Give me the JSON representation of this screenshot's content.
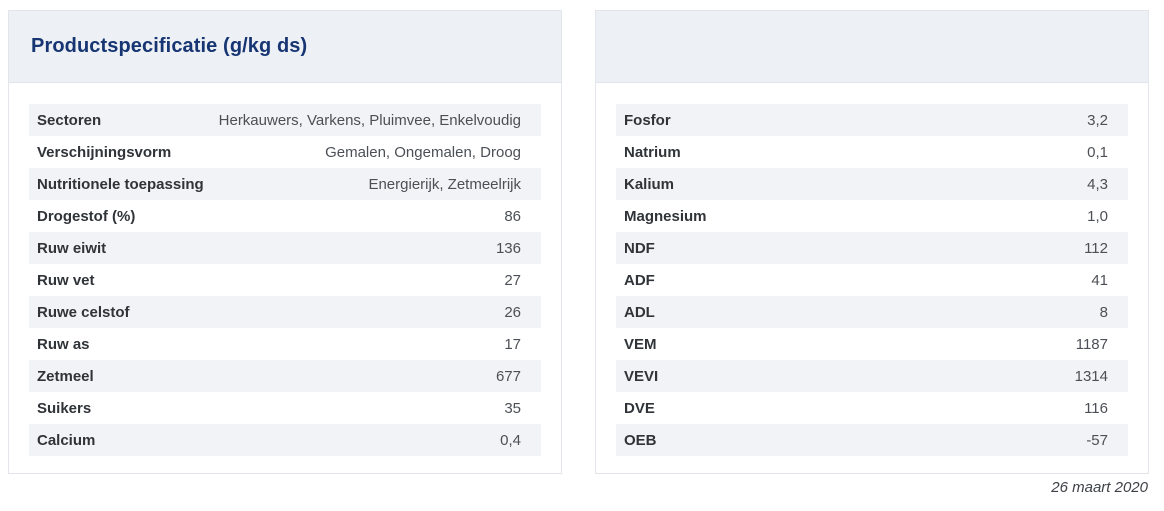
{
  "left_panel": {
    "title": "Productspecificatie (g/kg ds)",
    "rows": [
      {
        "label": "Sectoren",
        "value": "Herkauwers, Varkens, Pluimvee, Enkelvoudig"
      },
      {
        "label": "Verschijningsvorm",
        "value": "Gemalen, Ongemalen, Droog"
      },
      {
        "label": "Nutritionele toepassing",
        "value": "Energierijk, Zetmeelrijk"
      },
      {
        "label": "Drogestof (%)",
        "value": "86"
      },
      {
        "label": "Ruw eiwit",
        "value": "136"
      },
      {
        "label": "Ruw vet",
        "value": "27"
      },
      {
        "label": "Ruwe celstof",
        "value": "26"
      },
      {
        "label": "Ruw as",
        "value": "17"
      },
      {
        "label": "Zetmeel",
        "value": "677"
      },
      {
        "label": "Suikers",
        "value": "35"
      },
      {
        "label": "Calcium",
        "value": "0,4"
      }
    ]
  },
  "right_panel": {
    "title": "",
    "rows": [
      {
        "label": "Fosfor",
        "value": "3,2"
      },
      {
        "label": "Natrium",
        "value": "0,1"
      },
      {
        "label": "Kalium",
        "value": "4,3"
      },
      {
        "label": "Magnesium",
        "value": "1,0"
      },
      {
        "label": "NDF",
        "value": "112"
      },
      {
        "label": "ADF",
        "value": "41"
      },
      {
        "label": "ADL",
        "value": "8"
      },
      {
        "label": "VEM",
        "value": "1187"
      },
      {
        "label": "VEVI",
        "value": "1314"
      },
      {
        "label": "DVE",
        "value": "116"
      },
      {
        "label": "OEB",
        "value": "-57"
      }
    ]
  },
  "footer": {
    "date": "26 maart 2020"
  },
  "colors": {
    "title_navy": "#163572",
    "header_band": "#edf1f6",
    "row_stripe": "#f1f3f6",
    "panel_border": "#e2e5ea",
    "label_text": "#303338",
    "value_text": "#4c5056"
  }
}
